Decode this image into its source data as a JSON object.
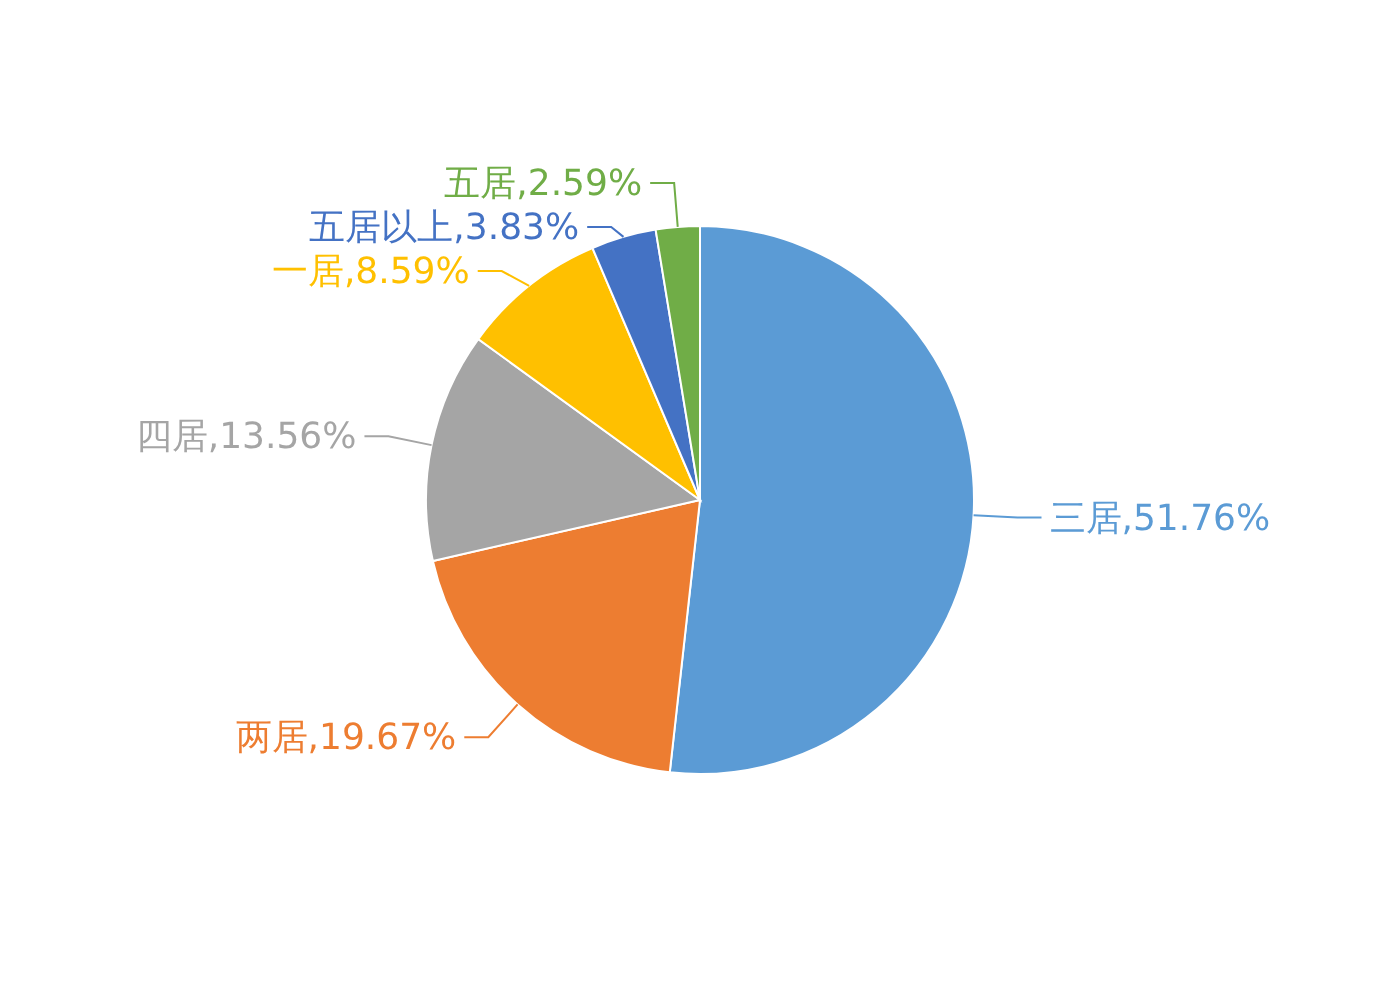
{
  "chart_data": {
    "type": "pie",
    "categories": [
      "三居",
      "两居",
      "四居",
      "一居",
      "五居以上",
      "五居"
    ],
    "values": [
      51.76,
      19.67,
      13.56,
      8.59,
      3.83,
      2.59
    ],
    "value_labels": [
      "51.76%",
      "19.67%",
      "13.56%",
      "8.59%",
      "3.83%",
      "2.59%"
    ],
    "colors": [
      "#5b9bd5",
      "#ed7d31",
      "#a5a5a5",
      "#ffc000",
      "#4472c4",
      "#70ad47"
    ]
  }
}
